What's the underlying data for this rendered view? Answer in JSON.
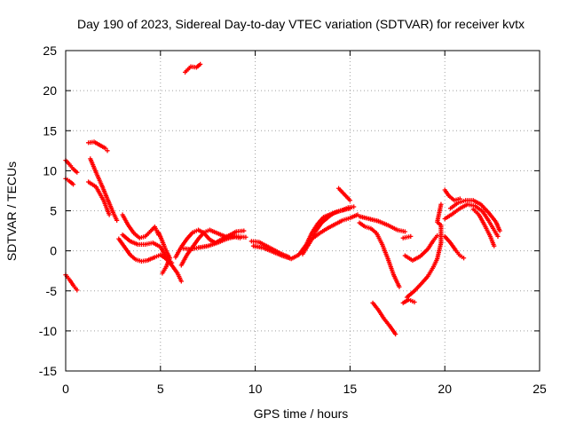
{
  "chart_data": {
    "type": "scatter",
    "title": "Day 190 of 2023, Sidereal Day-to-day VTEC variation (SDTVAR) for receiver kvtx",
    "xlabel": "GPS time / hours",
    "ylabel": "SDTVAR / TECUs",
    "xlim": [
      0,
      25
    ],
    "ylim": [
      -15,
      25
    ],
    "xticks": [
      0,
      5,
      10,
      15,
      20,
      25
    ],
    "yticks": [
      -15,
      -10,
      -5,
      0,
      5,
      10,
      15,
      20,
      25
    ],
    "grid": true,
    "marker": "+",
    "color": "#ff0000",
    "series": [
      {
        "name": "arc-1",
        "points": [
          [
            0.0,
            11.3
          ],
          [
            0.2,
            10.8
          ],
          [
            0.4,
            10.2
          ],
          [
            0.6,
            9.8
          ]
        ]
      },
      {
        "name": "arc-2",
        "points": [
          [
            0.0,
            9.0
          ],
          [
            0.2,
            8.7
          ],
          [
            0.4,
            8.3
          ]
        ]
      },
      {
        "name": "arc-3",
        "points": [
          [
            0.0,
            -3.0
          ],
          [
            0.2,
            -3.6
          ],
          [
            0.4,
            -4.3
          ],
          [
            0.6,
            -4.9
          ]
        ]
      },
      {
        "name": "arc-4",
        "points": [
          [
            1.2,
            13.5
          ],
          [
            1.5,
            13.6
          ],
          [
            1.8,
            13.2
          ],
          [
            2.1,
            12.8
          ],
          [
            2.2,
            12.5
          ]
        ]
      },
      {
        "name": "arc-5",
        "points": [
          [
            1.3,
            11.5
          ],
          [
            1.6,
            9.8
          ],
          [
            1.9,
            8.2
          ],
          [
            2.2,
            6.5
          ],
          [
            2.5,
            4.8
          ],
          [
            2.7,
            3.8
          ]
        ]
      },
      {
        "name": "arc-6",
        "points": [
          [
            1.2,
            8.6
          ],
          [
            1.6,
            8.0
          ],
          [
            2.0,
            6.3
          ],
          [
            2.3,
            4.5
          ]
        ]
      },
      {
        "name": "arc-7",
        "points": [
          [
            3.0,
            4.5
          ],
          [
            3.3,
            3.2
          ],
          [
            3.6,
            2.2
          ],
          [
            3.9,
            1.6
          ],
          [
            4.2,
            1.8
          ],
          [
            4.5,
            2.5
          ],
          [
            4.7,
            3.0
          ],
          [
            4.9,
            2.0
          ]
        ]
      },
      {
        "name": "arc-8",
        "points": [
          [
            3.0,
            2.0
          ],
          [
            3.4,
            1.2
          ],
          [
            3.8,
            0.8
          ],
          [
            4.2,
            0.8
          ],
          [
            4.6,
            1.0
          ],
          [
            5.0,
            0.5
          ],
          [
            5.3,
            -0.8
          ],
          [
            5.6,
            -1.5
          ]
        ]
      },
      {
        "name": "arc-9",
        "points": [
          [
            2.8,
            1.5
          ],
          [
            3.1,
            0.5
          ],
          [
            3.4,
            -0.5
          ],
          [
            3.7,
            -1.1
          ],
          [
            4.0,
            -1.3
          ],
          [
            4.3,
            -1.2
          ],
          [
            4.7,
            -0.8
          ],
          [
            5.0,
            -0.5
          ],
          [
            5.3,
            -1.0
          ],
          [
            5.6,
            -1.8
          ],
          [
            5.9,
            -2.8
          ],
          [
            6.1,
            -3.8
          ]
        ]
      },
      {
        "name": "arc-10",
        "points": [
          [
            4.9,
            2.3
          ],
          [
            5.1,
            1.2
          ],
          [
            5.3,
            0.0
          ],
          [
            5.5,
            -0.9
          ],
          [
            5.3,
            -2.0
          ],
          [
            5.1,
            -2.8
          ]
        ]
      },
      {
        "name": "arc-11",
        "points": [
          [
            6.1,
            -1.8
          ],
          [
            6.4,
            -0.5
          ],
          [
            6.7,
            0.5
          ],
          [
            7.0,
            1.5
          ],
          [
            7.3,
            2.3
          ],
          [
            7.6,
            2.6
          ],
          [
            8.0,
            2.2
          ],
          [
            8.4,
            1.8
          ],
          [
            8.8,
            1.8
          ],
          [
            9.2,
            1.6
          ]
        ]
      },
      {
        "name": "arc-12",
        "points": [
          [
            5.8,
            -0.8
          ],
          [
            6.1,
            0.5
          ],
          [
            6.4,
            1.5
          ],
          [
            6.7,
            2.3
          ],
          [
            7.0,
            2.6
          ],
          [
            7.3,
            2.2
          ],
          [
            7.6,
            1.4
          ],
          [
            7.9,
            1.0
          ],
          [
            8.2,
            1.4
          ],
          [
            8.6,
            1.9
          ],
          [
            9.0,
            2.4
          ],
          [
            9.4,
            2.5
          ]
        ]
      },
      {
        "name": "arc-13",
        "points": [
          [
            6.2,
            0.3
          ],
          [
            6.6,
            0.2
          ],
          [
            7.0,
            0.4
          ],
          [
            7.5,
            0.6
          ],
          [
            8.0,
            1.0
          ],
          [
            8.5,
            1.5
          ],
          [
            9.0,
            1.8
          ],
          [
            9.5,
            1.7
          ]
        ]
      },
      {
        "name": "arc-14",
        "points": [
          [
            6.3,
            22.3
          ],
          [
            6.6,
            23.0
          ],
          [
            6.9,
            22.9
          ],
          [
            7.1,
            23.3
          ]
        ]
      },
      {
        "name": "arc-15",
        "points": [
          [
            9.8,
            1.2
          ],
          [
            10.2,
            1.1
          ],
          [
            10.6,
            0.6
          ],
          [
            11.0,
            0.1
          ],
          [
            11.4,
            -0.4
          ],
          [
            11.8,
            -0.8
          ]
        ]
      },
      {
        "name": "arc-16",
        "points": [
          [
            9.9,
            0.6
          ],
          [
            10.4,
            0.4
          ],
          [
            10.9,
            -0.1
          ],
          [
            11.4,
            -0.6
          ],
          [
            11.9,
            -1.0
          ],
          [
            12.3,
            -0.5
          ],
          [
            12.7,
            0.8
          ],
          [
            13.0,
            2.3
          ],
          [
            13.3,
            3.4
          ],
          [
            13.6,
            4.2
          ],
          [
            14.0,
            4.6
          ],
          [
            14.5,
            5.0
          ],
          [
            15.0,
            5.3
          ]
        ]
      },
      {
        "name": "arc-17",
        "points": [
          [
            12.5,
            -0.4
          ],
          [
            12.9,
            1.1
          ],
          [
            13.2,
            2.5
          ],
          [
            13.5,
            3.5
          ],
          [
            13.9,
            4.3
          ],
          [
            14.2,
            4.8
          ],
          [
            14.6,
            5.1
          ],
          [
            14.9,
            5.4
          ],
          [
            15.2,
            5.5
          ]
        ]
      },
      {
        "name": "arc-18",
        "points": [
          [
            13.0,
            1.5
          ],
          [
            13.4,
            2.2
          ],
          [
            13.8,
            2.8
          ],
          [
            14.2,
            3.3
          ],
          [
            14.6,
            3.8
          ],
          [
            15.0,
            4.1
          ],
          [
            15.4,
            4.5
          ]
        ]
      },
      {
        "name": "arc-19",
        "points": [
          [
            14.4,
            7.8
          ],
          [
            14.6,
            7.3
          ],
          [
            14.8,
            6.8
          ],
          [
            15.0,
            6.3
          ]
        ]
      },
      {
        "name": "arc-20",
        "points": [
          [
            15.5,
            4.3
          ],
          [
            16.0,
            4.0
          ],
          [
            16.5,
            3.7
          ],
          [
            17.0,
            3.2
          ],
          [
            17.5,
            2.6
          ],
          [
            17.9,
            2.4
          ]
        ]
      },
      {
        "name": "arc-21",
        "points": [
          [
            15.5,
            3.5
          ],
          [
            15.8,
            3.0
          ],
          [
            16.1,
            2.8
          ],
          [
            16.4,
            2.2
          ],
          [
            16.7,
            0.8
          ],
          [
            17.0,
            -1.0
          ],
          [
            17.3,
            -3.0
          ],
          [
            17.6,
            -4.5
          ]
        ]
      },
      {
        "name": "arc-22",
        "points": [
          [
            16.2,
            -6.5
          ],
          [
            16.5,
            -7.4
          ],
          [
            16.8,
            -8.5
          ],
          [
            17.1,
            -9.4
          ],
          [
            17.4,
            -10.4
          ]
        ]
      },
      {
        "name": "arc-23",
        "points": [
          [
            17.8,
            1.6
          ],
          [
            18.2,
            1.8
          ]
        ]
      },
      {
        "name": "arc-24",
        "points": [
          [
            17.9,
            -0.6
          ],
          [
            18.3,
            -1.2
          ],
          [
            18.7,
            -0.7
          ],
          [
            19.1,
            0.2
          ],
          [
            19.4,
            1.3
          ],
          [
            19.6,
            1.9
          ]
        ]
      },
      {
        "name": "arc-25",
        "points": [
          [
            17.8,
            -6.5
          ],
          [
            18.1,
            -6.1
          ],
          [
            18.4,
            -6.4
          ]
        ]
      },
      {
        "name": "arc-26",
        "points": [
          [
            18.0,
            -5.8
          ],
          [
            18.4,
            -5.0
          ],
          [
            18.8,
            -4.0
          ],
          [
            19.1,
            -3.2
          ],
          [
            19.4,
            -2.0
          ],
          [
            19.6,
            -1.0
          ],
          [
            19.8,
            1.0
          ],
          [
            19.8,
            3.2
          ],
          [
            19.6,
            3.6
          ],
          [
            19.8,
            5.8
          ]
        ]
      },
      {
        "name": "arc-27",
        "points": [
          [
            20.0,
            7.6
          ],
          [
            20.2,
            6.9
          ],
          [
            20.5,
            6.3
          ],
          [
            20.8,
            6.5
          ]
        ]
      },
      {
        "name": "arc-28",
        "points": [
          [
            20.0,
            4.0
          ],
          [
            20.4,
            4.6
          ],
          [
            20.8,
            5.3
          ],
          [
            21.2,
            5.8
          ],
          [
            21.6,
            5.6
          ],
          [
            22.0,
            4.9
          ],
          [
            22.3,
            3.8
          ],
          [
            22.6,
            2.6
          ],
          [
            22.8,
            1.8
          ]
        ]
      },
      {
        "name": "arc-29",
        "points": [
          [
            20.3,
            5.3
          ],
          [
            20.7,
            6.0
          ],
          [
            21.1,
            6.3
          ],
          [
            21.5,
            6.3
          ],
          [
            21.9,
            5.8
          ],
          [
            22.3,
            4.8
          ],
          [
            22.7,
            3.6
          ],
          [
            22.9,
            2.5
          ]
        ]
      },
      {
        "name": "arc-30",
        "points": [
          [
            21.5,
            5.2
          ],
          [
            21.8,
            4.5
          ],
          [
            22.1,
            3.2
          ],
          [
            22.4,
            1.8
          ],
          [
            22.6,
            0.6
          ]
        ]
      },
      {
        "name": "arc-31",
        "points": [
          [
            20.0,
            1.8
          ],
          [
            20.3,
            1.0
          ],
          [
            20.6,
            0.0
          ],
          [
            20.8,
            -0.6
          ],
          [
            21.0,
            -0.9
          ]
        ]
      }
    ]
  }
}
